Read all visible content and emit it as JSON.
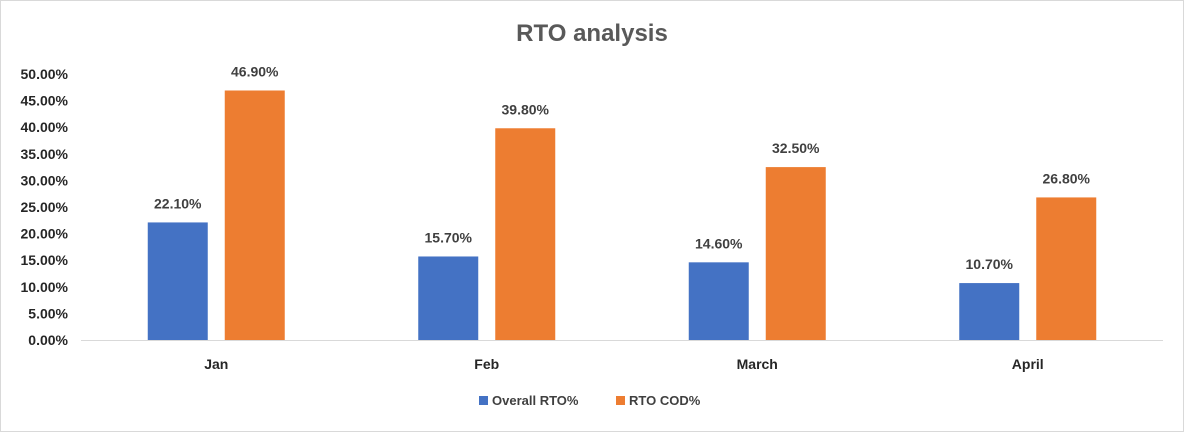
{
  "chart_data": {
    "type": "bar",
    "title": "RTO analysis",
    "categories": [
      "Jan",
      "Feb",
      "March",
      "April"
    ],
    "series": [
      {
        "name": "Overall RTO%",
        "values": [
          22.1,
          15.7,
          14.6,
          10.7
        ],
        "labels": [
          "22.10%",
          "15.70%",
          "14.60%",
          "10.70%"
        ],
        "color": "#4472C4"
      },
      {
        "name": "RTO COD%",
        "values": [
          46.9,
          39.8,
          32.5,
          26.8
        ],
        "labels": [
          "46.90%",
          "39.80%",
          "32.50%",
          "26.80%"
        ],
        "color": "#ED7D31"
      }
    ],
    "yticks": [
      "0.00%",
      "5.00%",
      "10.00%",
      "15.00%",
      "20.00%",
      "25.00%",
      "30.00%",
      "35.00%",
      "40.00%",
      "45.00%",
      "50.00%"
    ],
    "ylim": [
      0,
      50
    ],
    "xlabel": "",
    "ylabel": "",
    "grid": false,
    "legend": "bottom"
  }
}
